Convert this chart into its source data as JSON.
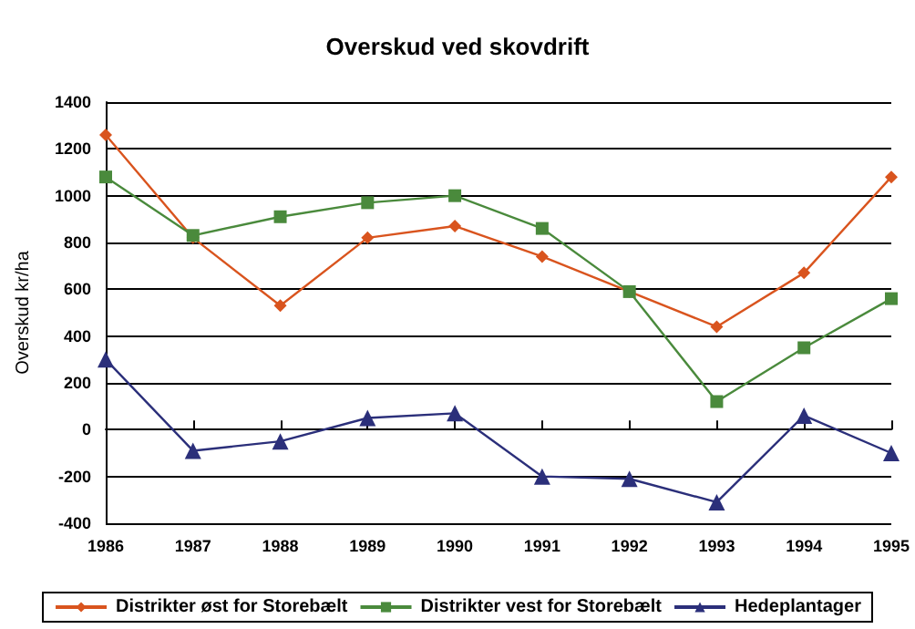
{
  "chart_data": {
    "type": "line",
    "title": "Overskud ved skovdrift",
    "ylabel": "Overskud kr/ha",
    "categories": [
      "1986",
      "1987",
      "1988",
      "1989",
      "1990",
      "1991",
      "1992",
      "1993",
      "1994",
      "1995"
    ],
    "series": [
      {
        "name": "Distrikter øst for Storebælt",
        "color": "#d9541e",
        "marker": "diamond",
        "values": [
          1260,
          820,
          530,
          820,
          870,
          740,
          590,
          440,
          670,
          1080
        ]
      },
      {
        "name": "Distrikter vest for Storebælt",
        "color": "#4a8a3c",
        "marker": "square",
        "values": [
          1080,
          830,
          910,
          970,
          1000,
          860,
          590,
          120,
          350,
          560
        ]
      },
      {
        "name": "Hedeplantager",
        "color": "#2b2f7a",
        "marker": "triangle",
        "values": [
          300,
          -90,
          -50,
          50,
          70,
          -200,
          -210,
          -310,
          60,
          -100
        ]
      }
    ],
    "ylim": [
      -400,
      1400
    ],
    "yticks": [
      -400,
      -200,
      0,
      200,
      400,
      600,
      800,
      1000,
      1200,
      1400
    ],
    "grid": "y",
    "legend": "bottom"
  }
}
